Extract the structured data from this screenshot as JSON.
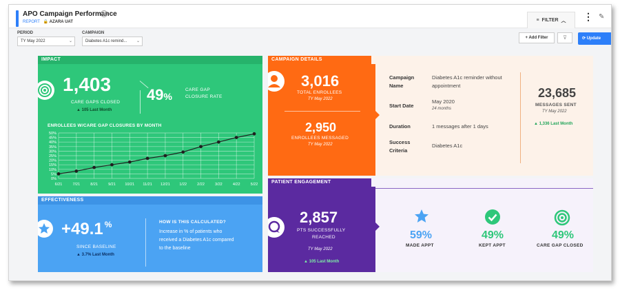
{
  "header": {
    "title": "APO Campaign Performance",
    "subtitle_report": "REPORT",
    "subtitle_org": "AZARA UAT",
    "filter_label": "FILTER",
    "info_glyph": "i"
  },
  "filters": {
    "period_label": "PERIOD",
    "period_value": "TY May 2022",
    "campaign_label": "CAMPAIGN",
    "campaign_value": "Diabetes A1c remind...",
    "add_filter": "+ Add Filter",
    "update": "Update"
  },
  "impact": {
    "header": "IMPACT",
    "gaps_closed": "1,403",
    "gaps_closed_label": "CARE GAPS CLOSED",
    "gaps_delta": "▲ 105 Last Month",
    "closure_rate": "49",
    "closure_rate_unit": "%",
    "closure_label_1": "CARE GAP",
    "closure_label_2": "CLOSURE RATE",
    "chart_title": "ENROLLEES W/CARE GAP CLOSURES BY MONTH"
  },
  "chart_data": {
    "type": "line",
    "title": "ENROLLEES W/CARE GAP CLOSURES BY MONTH",
    "categories": [
      "6/21",
      "7/21",
      "8/21",
      "9/21",
      "10/21",
      "11/21",
      "12/21",
      "1/22",
      "2/22",
      "3/22",
      "4/22",
      "5/22"
    ],
    "values": [
      5,
      8,
      12,
      15,
      18,
      22,
      25,
      29,
      35,
      40,
      45,
      49
    ],
    "y_ticks": [
      "0%",
      "5%",
      "10%",
      "15%",
      "20%",
      "25%",
      "30%",
      "35%",
      "40%",
      "45%",
      "50%"
    ],
    "ylim": [
      0,
      50
    ],
    "grid": true,
    "line_color": "#1f1f1f"
  },
  "campaign": {
    "header": "CAMPAIGN DETAILS",
    "total_enrollees": "3,016",
    "total_enrollees_label": "TOTAL ENROLLEES",
    "total_enrollees_period": "TY May 2022",
    "enrollees_messaged": "2,950",
    "enrollees_messaged_label": "ENROLLEES MESSAGED",
    "enrollees_messaged_period": "TY May 2022",
    "name_label_1": "Campaign",
    "name_label_2": "Name",
    "name_value_1": "Diabetes A1c reminder without",
    "name_value_2": "appointment",
    "start_label": "Start Date",
    "start_value": "May 2020",
    "start_sub": "24 months",
    "duration_label": "Duration",
    "duration_value": "1 messages after 1 days",
    "criteria_label_1": "Success",
    "criteria_label_2": "Criteria",
    "criteria_value": "Diabetes A1c",
    "messages_sent": "23,685",
    "messages_sent_label": "MESSAGES SENT",
    "messages_sent_period": "TY May 2022",
    "messages_delta": "▲ 1,336 Last Month"
  },
  "effectiveness": {
    "header": "EFFECTIVENESS",
    "value": "+49.1",
    "unit": "%",
    "label": "SINCE BASELINE",
    "delta": "▲ 3.7% Last Month",
    "how_title": "HOW IS THIS CALCULATED?",
    "how_1": "Increase in % of patients who",
    "how_2": "received a Diabetes A1c compared",
    "how_3": "to the baseline"
  },
  "engagement": {
    "header": "PATIENT ENGAGEMENT",
    "reached": "2,857",
    "reached_label_1": "PTS SUCCESSFULLY",
    "reached_label_2": "REACHED",
    "reached_period": "TY May 2022",
    "reached_delta": "▲ 105 Last Month",
    "made_appt_pct": "59%",
    "made_appt_label": "MADE APPT",
    "kept_appt_pct": "49%",
    "kept_appt_label": "KEPT APPT",
    "gap_closed_pct": "49%",
    "gap_closed_label": "CARE GAP CLOSED"
  },
  "colors": {
    "green": "#2ec77a",
    "blue": "#4ba3f3",
    "orange": "#ff6a13",
    "purple": "#5b2aa0",
    "peach": "#fdf2e9",
    "lavender": "#f6f2fb"
  }
}
